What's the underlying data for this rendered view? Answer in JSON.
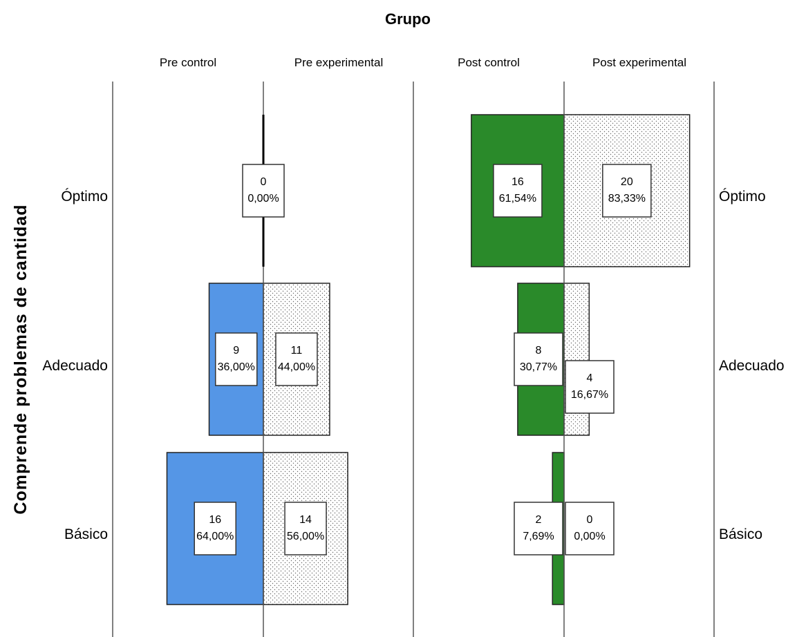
{
  "chart_data": {
    "type": "bar",
    "subtype": "population-pyramid",
    "title": "Grupo",
    "ylabel": "Comprende problemas de cantidad",
    "categories": [
      "Óptimo",
      "Adecuado",
      "Básico"
    ],
    "panels": [
      {
        "series": [
          {
            "name": "Pre control",
            "color": "#5596e6",
            "side": "left",
            "counts": [
              0,
              9,
              16
            ],
            "percents": [
              "0,00%",
              "36,00%",
              "64,00%"
            ]
          },
          {
            "name": "Pre experimental",
            "color": "dotted",
            "side": "right",
            "counts": [
              0,
              11,
              14
            ],
            "percents": [
              "0,00%",
              "44,00%",
              "56,00%"
            ]
          }
        ]
      },
      {
        "series": [
          {
            "name": "Post control",
            "color": "#2a8a2a",
            "side": "left",
            "counts": [
              16,
              8,
              2
            ],
            "percents": [
              "61,54%",
              "30,77%",
              "7,69%"
            ]
          },
          {
            "name": "Post experimental",
            "color": "dotted",
            "side": "right",
            "counts": [
              20,
              4,
              0
            ],
            "percents": [
              "83,33%",
              "16,67%",
              "0,00%"
            ]
          }
        ]
      }
    ],
    "xlim": [
      0,
      100
    ],
    "grid": false,
    "legend": "none"
  }
}
